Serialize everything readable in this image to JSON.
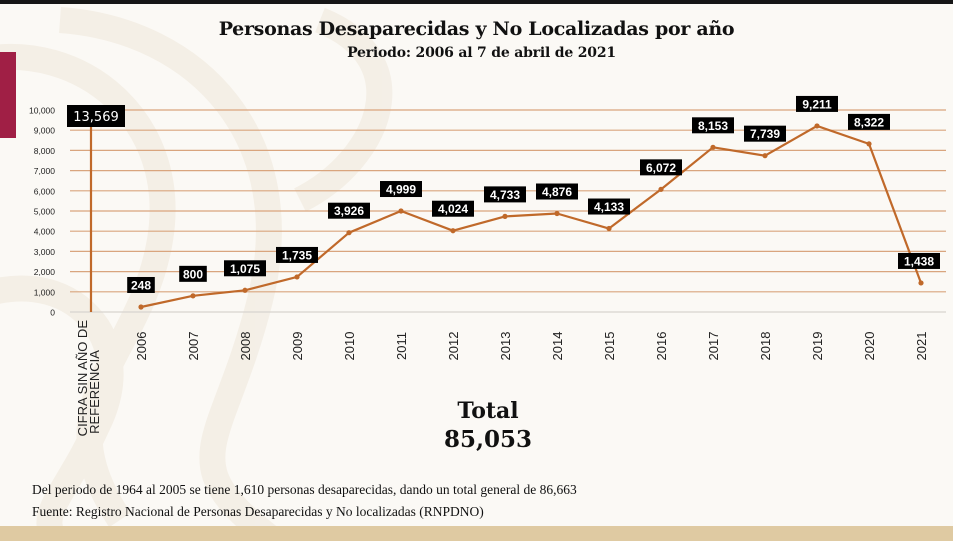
{
  "title": "Personas Desaparecidas y No Localizadas por año",
  "subtitle": "Periodo: 2006 al 7 de abril de 2021",
  "total": {
    "label": "Total",
    "value": "85,053"
  },
  "notes": {
    "period_note": "Del periodo de 1964 al 2005 se tiene 1,610 personas desaparecidas, dando un total general de 86,663",
    "source": "Fuente: Registro Nacional de Personas Desaparecidas y No localizadas (RNPDNO)"
  },
  "colors": {
    "line": "#c0692a",
    "grid": "#d9a57e",
    "zero_line": "#d8d4cf",
    "label_bg": "#000000",
    "label_text": "#ffffff",
    "accent_red": "#a01f45",
    "bottom_band": "#dfcaa2"
  },
  "chart_data": {
    "type": "line",
    "title": "Personas Desaparecidas y No Localizadas por año",
    "subtitle": "Periodo: 2006 al 7 de abril de 2021",
    "xlabel": "",
    "ylabel": "",
    "ylim": [
      0,
      10000
    ],
    "yticks": [
      0,
      1000,
      2000,
      3000,
      4000,
      5000,
      6000,
      7000,
      8000,
      9000,
      10000
    ],
    "ytick_labels": [
      "0",
      "1,000",
      "2,000",
      "3,000",
      "4,000",
      "5,000",
      "6,000",
      "7,000",
      "8,000",
      "9,000",
      "10,000"
    ],
    "grid": true,
    "legend": "none",
    "reference_bar": {
      "category_line1": "CIFRA SIN AÑO DE",
      "category_line2": "REFERENCIA",
      "value": 13569,
      "label": "13,569"
    },
    "categories": [
      "2006",
      "2007",
      "2008",
      "2009",
      "2010",
      "2011",
      "2012",
      "2013",
      "2014",
      "2015",
      "2016",
      "2017",
      "2018",
      "2019",
      "2020",
      "2021"
    ],
    "series": [
      {
        "name": "Personas desaparecidas",
        "values": [
          248,
          800,
          1075,
          1735,
          3926,
          4999,
          4024,
          4733,
          4876,
          4133,
          6072,
          8153,
          7739,
          9211,
          8322,
          1438
        ],
        "labels": [
          "248",
          "800",
          "1,075",
          "1,735",
          "3,926",
          "4,999",
          "4,024",
          "4,733",
          "4,876",
          "4,133",
          "6,072",
          "8,153",
          "7,739",
          "9,211",
          "8,322",
          "1,438"
        ]
      }
    ]
  }
}
